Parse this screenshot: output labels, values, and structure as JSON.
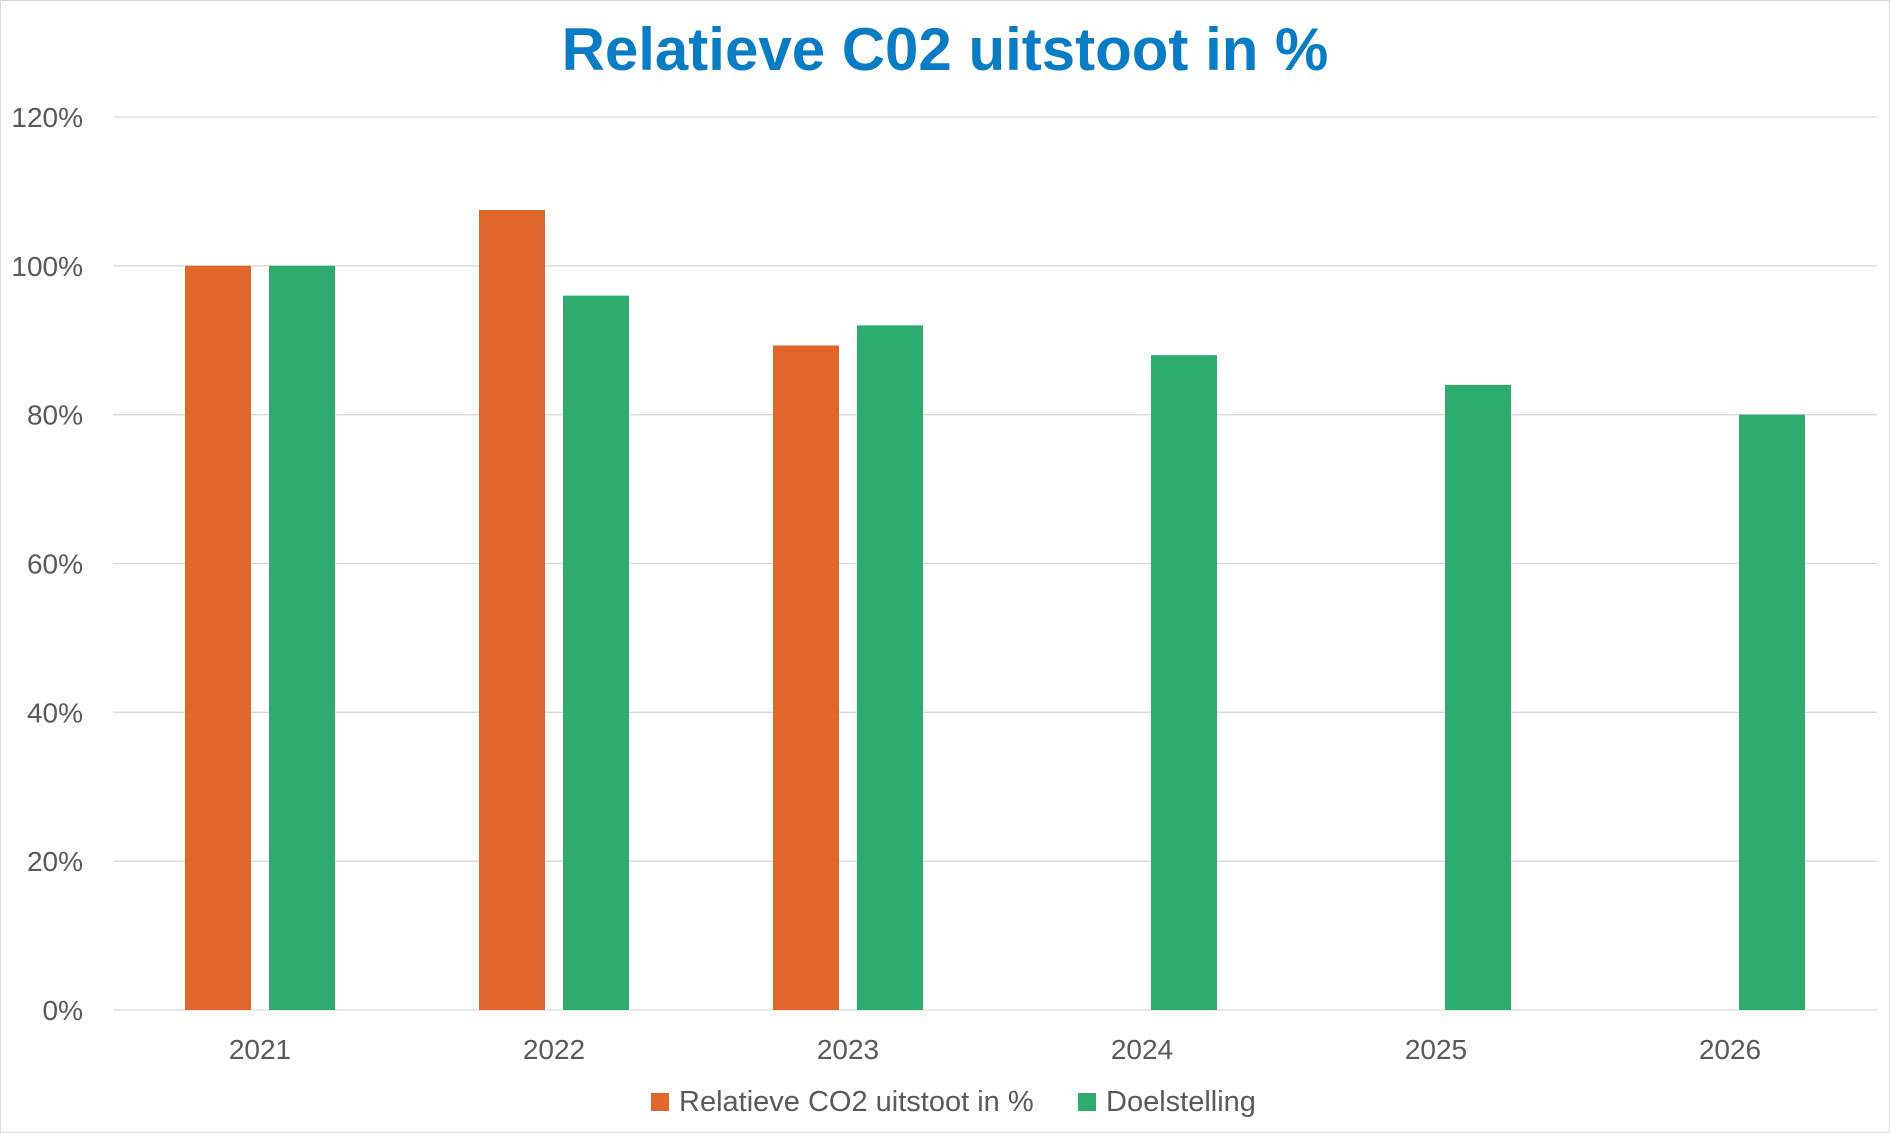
{
  "chart_data": {
    "type": "bar",
    "title": "Relatieve C02 uitstoot in %",
    "xlabel": "",
    "ylabel": "",
    "categories": [
      "2021",
      "2022",
      "2023",
      "2024",
      "2025",
      "2026"
    ],
    "series": [
      {
        "name": "Relatieve CO2 uitstoot in %",
        "color": "#e0662c",
        "values": [
          100,
          107.5,
          89.3,
          null,
          null,
          null
        ]
      },
      {
        "name": "Doelstelling",
        "color": "#2eac6e",
        "values": [
          100,
          96,
          92,
          88,
          84,
          80
        ]
      }
    ],
    "ylim": [
      0,
      120
    ],
    "yticks": [
      0,
      20,
      40,
      60,
      80,
      100,
      120
    ],
    "ytick_labels": [
      "0%",
      "20%",
      "40%",
      "60%",
      "80%",
      "100%",
      "120%"
    ],
    "grid": true,
    "legend_position": "bottom",
    "colors": {
      "title": "#0a7cc4",
      "gridline": "#d9d9d9",
      "text": "#595959"
    }
  }
}
